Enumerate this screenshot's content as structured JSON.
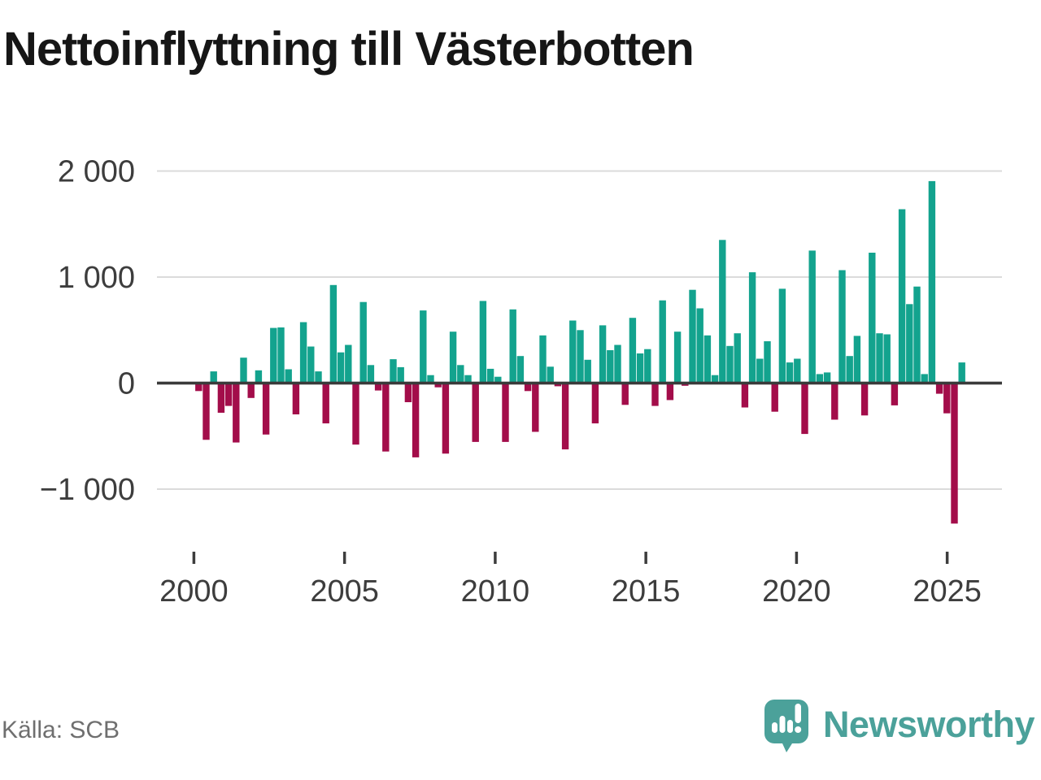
{
  "title": "Nettoinflyttning till Västerbotten",
  "footer": {
    "source": "Källa: SCB"
  },
  "branding": {
    "name": "Newsworthy",
    "color": "#4ba19a"
  },
  "chart_data": {
    "type": "bar",
    "title": "Nettoinflyttning till Västerbotten",
    "frequency": "quarterly",
    "start_period": "2000-Q1",
    "end_period": "2025-Q3",
    "values": [
      -75,
      -535,
      110,
      -280,
      -215,
      -560,
      240,
      -140,
      120,
      -485,
      520,
      525,
      130,
      -295,
      575,
      345,
      110,
      -380,
      925,
      290,
      360,
      -580,
      765,
      170,
      -70,
      -645,
      225,
      150,
      -180,
      -700,
      685,
      75,
      -40,
      -665,
      485,
      170,
      75,
      -555,
      775,
      135,
      60,
      -555,
      695,
      255,
      -75,
      -460,
      450,
      155,
      -30,
      -625,
      590,
      500,
      220,
      -380,
      545,
      310,
      360,
      -205,
      615,
      280,
      320,
      -215,
      780,
      -160,
      485,
      -25,
      880,
      705,
      450,
      75,
      1350,
      350,
      470,
      -230,
      1045,
      230,
      395,
      -270,
      890,
      195,
      230,
      -480,
      1250,
      85,
      100,
      -345,
      1065,
      255,
      445,
      -305,
      1230,
      470,
      460,
      -210,
      1640,
      745,
      910,
      85,
      1905,
      -100,
      -285,
      -1325,
      195
    ],
    "positive_color": "#13a38e",
    "negative_color": "#a30d4a",
    "axis": {
      "ylim": [
        -1400,
        2100
      ],
      "y_ticks": [
        {
          "label": "2 000",
          "value": 2000
        },
        {
          "label": "1 000",
          "value": 1000
        },
        {
          "label": "0",
          "value": 0
        },
        {
          "label": "−1 000",
          "value": -1000
        }
      ],
      "x_ticks": [
        {
          "label": "2000",
          "year": 2000
        },
        {
          "label": "2005",
          "year": 2005
        },
        {
          "label": "2010",
          "year": 2010
        },
        {
          "label": "2015",
          "year": 2015
        },
        {
          "label": "2020",
          "year": 2020
        },
        {
          "label": "2025",
          "year": 2025
        }
      ],
      "grid_on": true,
      "gridline_color": "#dbdbdb",
      "axis_line_color": "#3a3a3a",
      "tick_text_color": "#3d3d3d",
      "legend": "none"
    }
  }
}
